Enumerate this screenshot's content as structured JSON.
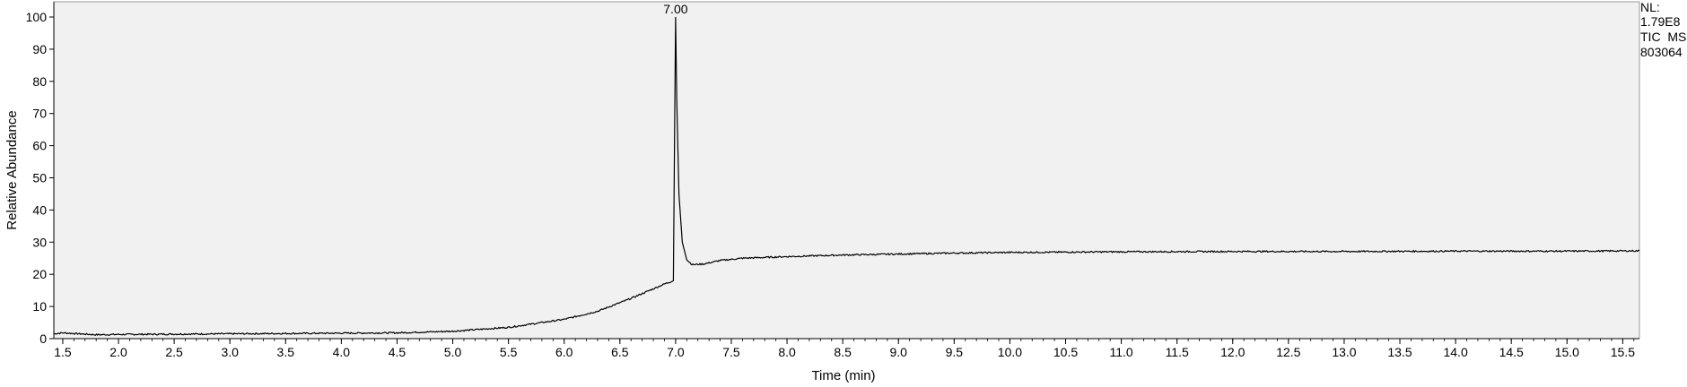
{
  "chart_data": {
    "type": "line",
    "xlabel": "Time (min)",
    "ylabel": "Relative Abundance",
    "xlim": [
      1.42,
      15.65
    ],
    "ylim": [
      0,
      100
    ],
    "x_ticks": [
      1.5,
      2.0,
      2.5,
      3.0,
      3.5,
      4.0,
      4.5,
      5.0,
      5.5,
      6.0,
      6.5,
      7.0,
      7.5,
      8.0,
      8.5,
      9.0,
      9.5,
      10.0,
      10.5,
      11.0,
      11.5,
      12.0,
      12.5,
      13.0,
      13.5,
      14.0,
      14.5,
      15.0,
      15.5
    ],
    "x_tick_labels": [
      "1.5",
      "2.0",
      "2.5",
      "3.0",
      "3.5",
      "4.0",
      "4.5",
      "5.0",
      "5.5",
      "6.0",
      "6.5",
      "7.0",
      "7.5",
      "8.0",
      "8.5",
      "9.0",
      "9.5",
      "10.0",
      "10.5",
      "11.0",
      "11.5",
      "12.0",
      "12.5",
      "13.0",
      "13.5",
      "14.0",
      "14.5",
      "15.0",
      "15.5"
    ],
    "y_ticks": [
      0,
      10,
      20,
      30,
      40,
      50,
      60,
      70,
      80,
      90,
      100
    ],
    "y_tick_labels": [
      "0",
      "10",
      "20",
      "30",
      "40",
      "50",
      "60",
      "70",
      "80",
      "90",
      "100"
    ],
    "grid": false,
    "series": [
      {
        "x": [
          1.42,
          1.5,
          1.8,
          2.0,
          2.5,
          3.0,
          3.5,
          4.0,
          4.5,
          5.0,
          5.5,
          6.0,
          6.3,
          6.6,
          6.9,
          6.98,
          6.99,
          7.0,
          7.01,
          7.03,
          7.06,
          7.1,
          7.15,
          7.25,
          7.4,
          7.6,
          8.0,
          8.5,
          9.0,
          9.5,
          10.0,
          11.0,
          12.0,
          13.0,
          14.0,
          15.0,
          15.65
        ],
        "y": [
          1.5,
          1.8,
          1.2,
          1.3,
          1.4,
          1.5,
          1.6,
          1.7,
          1.8,
          2.3,
          3.5,
          6.0,
          8.5,
          12.5,
          17.0,
          18.0,
          60.0,
          100.0,
          75.0,
          45.0,
          30.0,
          24.5,
          23.0,
          23.2,
          24.3,
          25.0,
          25.5,
          26.0,
          26.3,
          26.6,
          26.8,
          27.0,
          27.1,
          27.1,
          27.2,
          27.2,
          27.3
        ]
      }
    ],
    "annotations": [
      {
        "x": 7.0,
        "y": 100,
        "text": "7.00"
      }
    ],
    "info": {
      "nl_label": "NL:",
      "nl_value": "1.79E8",
      "trace": "TIC  MS",
      "sample": "803064"
    }
  }
}
